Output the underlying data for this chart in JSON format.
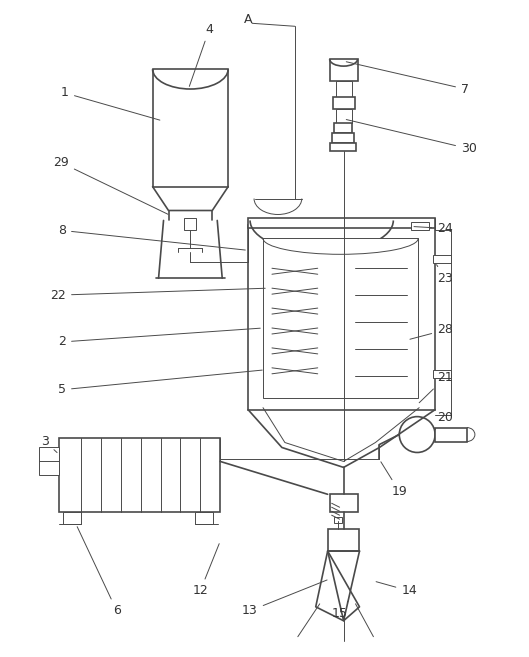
{
  "bg_color": "#ffffff",
  "line_color": "#4a4a4a",
  "line_width": 1.2,
  "thin_line": 0.7,
  "fig_width": 5.29,
  "fig_height": 6.57,
  "label_size": 9,
  "label_color": "#333333"
}
